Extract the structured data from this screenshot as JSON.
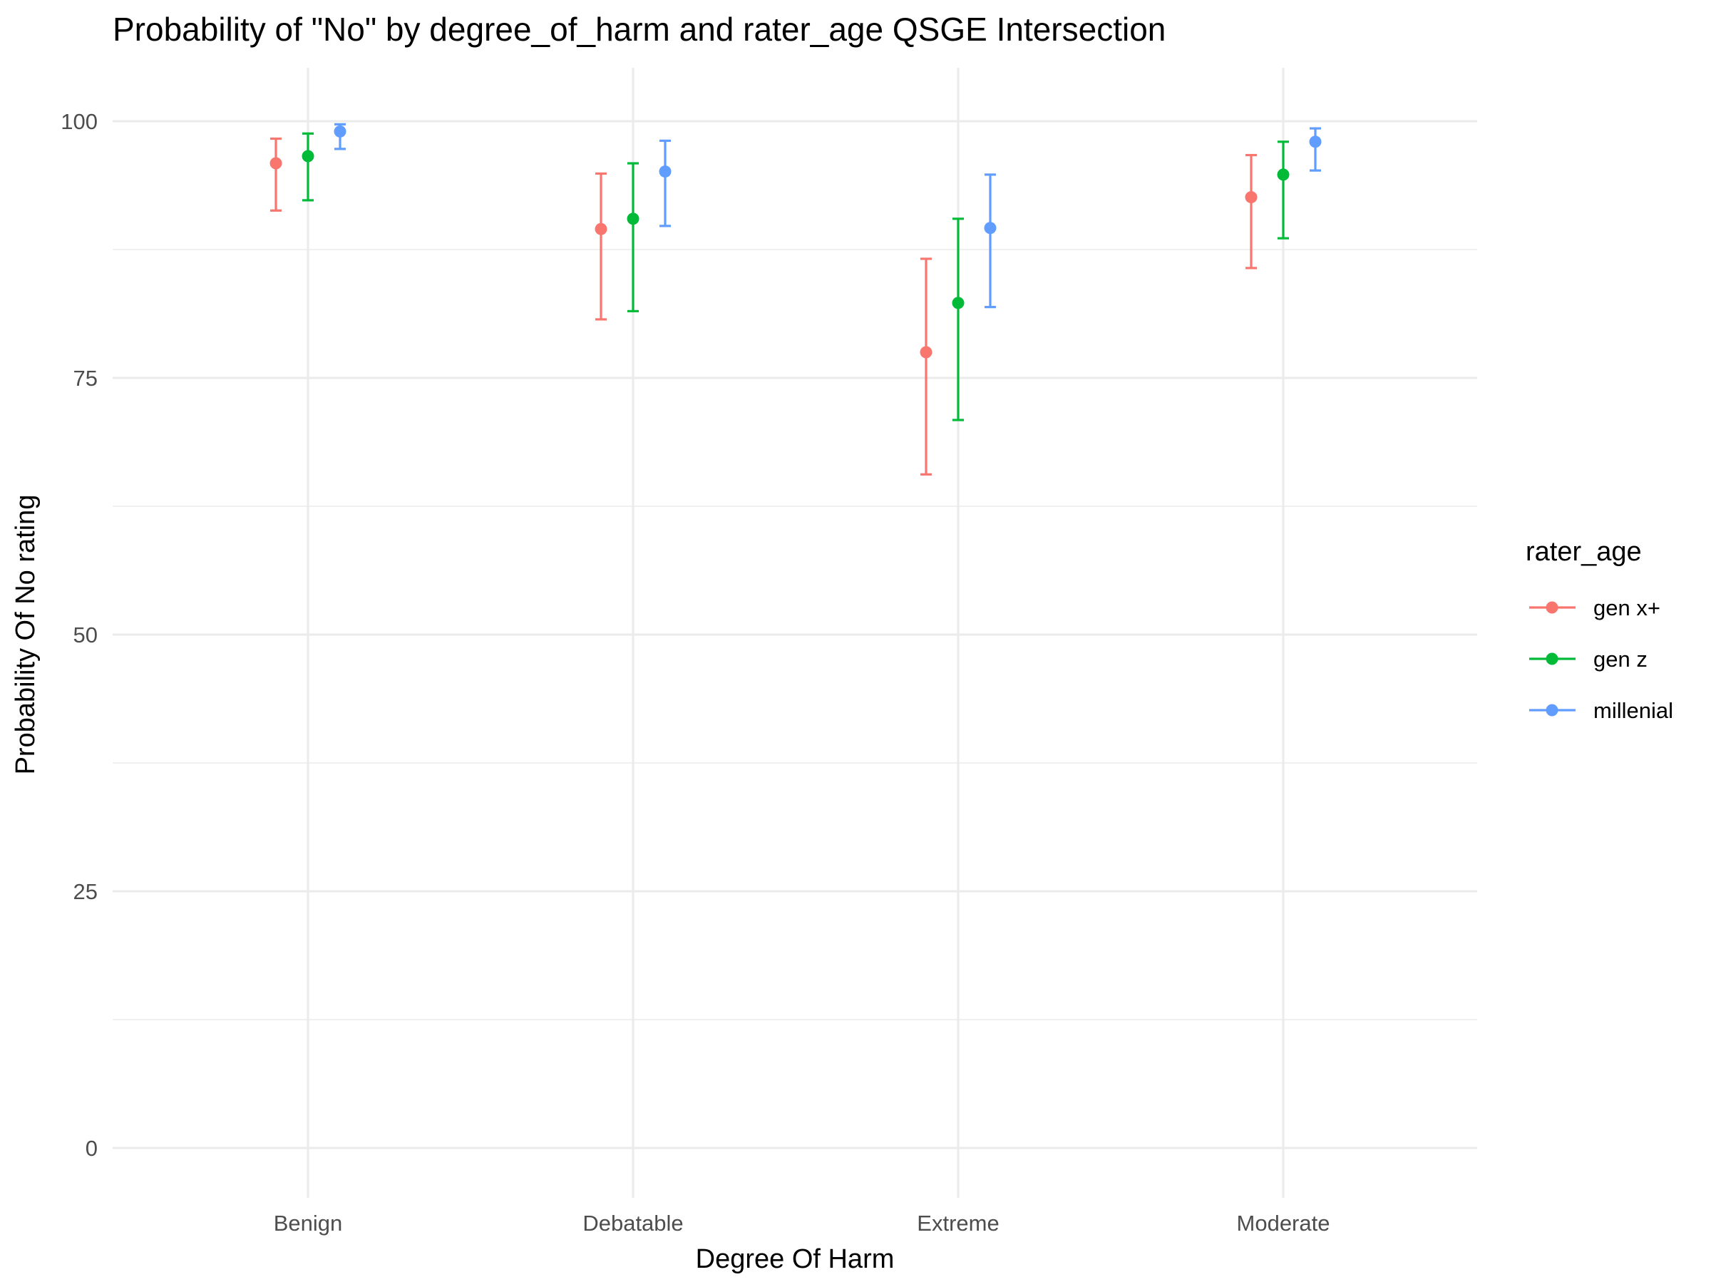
{
  "chart_data": {
    "type": "scatter",
    "title": "Probability of \"No\" by degree_of_harm and  rater_age  QSGE Intersection",
    "xlabel": "Degree Of Harm",
    "ylabel": "Probability Of No rating",
    "categories": [
      "Benign",
      "Debatable",
      "Extreme",
      "Moderate"
    ],
    "ylim": [
      -5,
      105
    ],
    "yticks": [
      0,
      25,
      50,
      75,
      100
    ],
    "yminor": [
      12.5,
      37.5,
      62.5,
      87.5
    ],
    "grid": true,
    "legend": {
      "title": "rater_age",
      "placement": "right"
    },
    "error_bars": true,
    "series": [
      {
        "name": "gen x+",
        "color": "#F8766D",
        "values": [
          95.9,
          89.5,
          77.5,
          92.6
        ],
        "lower": [
          91.3,
          80.7,
          65.6,
          85.7
        ],
        "upper": [
          98.3,
          94.9,
          86.6,
          96.7
        ]
      },
      {
        "name": "gen z",
        "color": "#00BA38",
        "values": [
          96.6,
          90.5,
          82.3,
          94.8
        ],
        "lower": [
          92.3,
          81.5,
          70.9,
          88.6
        ],
        "upper": [
          98.8,
          95.9,
          90.5,
          98.0
        ]
      },
      {
        "name": "millenial",
        "color": "#619CFF",
        "values": [
          99.0,
          95.1,
          89.6,
          98.0
        ],
        "lower": [
          97.3,
          89.8,
          81.9,
          95.2
        ],
        "upper": [
          99.7,
          98.1,
          94.8,
          99.3
        ]
      }
    ]
  }
}
